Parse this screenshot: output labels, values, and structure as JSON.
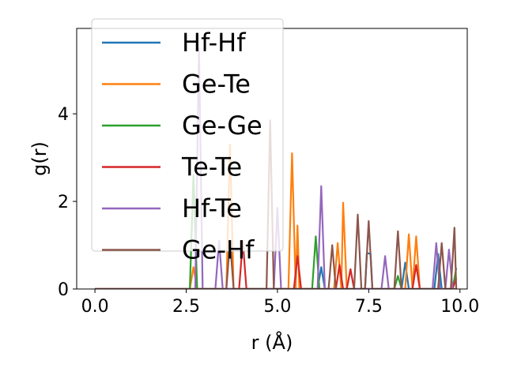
{
  "chart_data": {
    "type": "line",
    "title": "",
    "xlabel": "r (Å)",
    "ylabel": "g(r)",
    "xlim": [
      -0.5,
      10.2
    ],
    "ylim": [
      0,
      5.95
    ],
    "xticks": [
      "0.0",
      "2.5",
      "5.0",
      "7.5",
      "10.0"
    ],
    "yticks": [
      "0",
      "2",
      "4"
    ],
    "grid": false,
    "legend_position": "top-left",
    "series": [
      {
        "name": "Hf-Hf",
        "color": "#1f77b4",
        "x": [
          0,
          6.1,
          6.2,
          6.3,
          7.4,
          7.45,
          7.55,
          7.6,
          8.4,
          8.5,
          8.6,
          9.3,
          9.4,
          9.5,
          9.9
        ],
        "y": [
          0,
          0,
          0.5,
          0,
          0,
          0.82,
          0.8,
          0,
          0,
          0.6,
          0,
          0,
          0.8,
          0,
          0
        ]
      },
      {
        "name": "Ge-Te",
        "color": "#ff7f0e",
        "x": [
          0,
          2.6,
          2.7,
          2.8,
          3.6,
          3.7,
          3.8,
          5.3,
          5.4,
          5.5,
          5.55,
          5.6,
          6.55,
          6.65,
          6.75,
          6.8,
          6.9,
          8.5,
          8.6,
          8.7,
          8.8,
          8.9,
          9.9
        ],
        "y": [
          0,
          0,
          0.5,
          0,
          0,
          3.3,
          0,
          0,
          3.1,
          0,
          1.45,
          0,
          0,
          1.05,
          0,
          1.97,
          0,
          0,
          1.25,
          0,
          1.2,
          0,
          0
        ]
      },
      {
        "name": "Ge-Ge",
        "color": "#2ca02c",
        "x": [
          0,
          2.6,
          2.7,
          2.8,
          5.95,
          6.05,
          6.15,
          8.2,
          8.3,
          8.4,
          9.8,
          9.9
        ],
        "y": [
          0,
          0,
          2.6,
          0,
          0,
          1.2,
          0,
          0,
          0.3,
          0,
          0,
          0.48
        ]
      },
      {
        "name": "Te-Te",
        "color": "#d62728",
        "x": [
          0,
          3.95,
          4.05,
          4.15,
          5.45,
          5.55,
          5.65,
          6.6,
          6.7,
          6.8,
          6.9,
          7.0,
          7.1,
          8.7,
          8.8,
          8.9,
          9.8,
          9.9
        ],
        "y": [
          0,
          0,
          1.1,
          0,
          0,
          0.75,
          0,
          0,
          0.55,
          0,
          0,
          0.45,
          0,
          0,
          0.55,
          0,
          0,
          0.25
        ]
      },
      {
        "name": "Hf-Te",
        "color": "#9467bd",
        "x": [
          0,
          2.75,
          2.85,
          2.95,
          3.3,
          3.4,
          3.5,
          4.9,
          5.0,
          5.1,
          6.1,
          6.2,
          6.3,
          7.85,
          7.95,
          8.05,
          9.25,
          9.35,
          9.45,
          9.6,
          9.7,
          9.8
        ],
        "y": [
          0,
          0,
          5.5,
          0,
          0,
          1.1,
          0,
          0,
          1.85,
          0,
          0,
          2.35,
          0,
          0,
          0.75,
          0,
          0,
          1.05,
          0,
          0,
          0.9,
          0
        ]
      },
      {
        "name": "Ge-Hf",
        "color": "#8c564b",
        "x": [
          0,
          3.6,
          3.7,
          3.8,
          4.7,
          4.8,
          4.9,
          6.4,
          6.5,
          6.6,
          7.1,
          7.2,
          7.3,
          7.4,
          7.5,
          7.6,
          8.2,
          8.3,
          8.4,
          9.4,
          9.5,
          9.6,
          9.75,
          9.85,
          9.9
        ],
        "y": [
          0,
          0,
          1.1,
          0,
          0,
          3.85,
          0,
          0,
          1.0,
          0,
          0,
          1.7,
          0,
          0,
          1.55,
          0,
          0,
          1.32,
          0,
          0,
          1.05,
          0,
          0,
          1.4,
          0
        ]
      }
    ]
  }
}
